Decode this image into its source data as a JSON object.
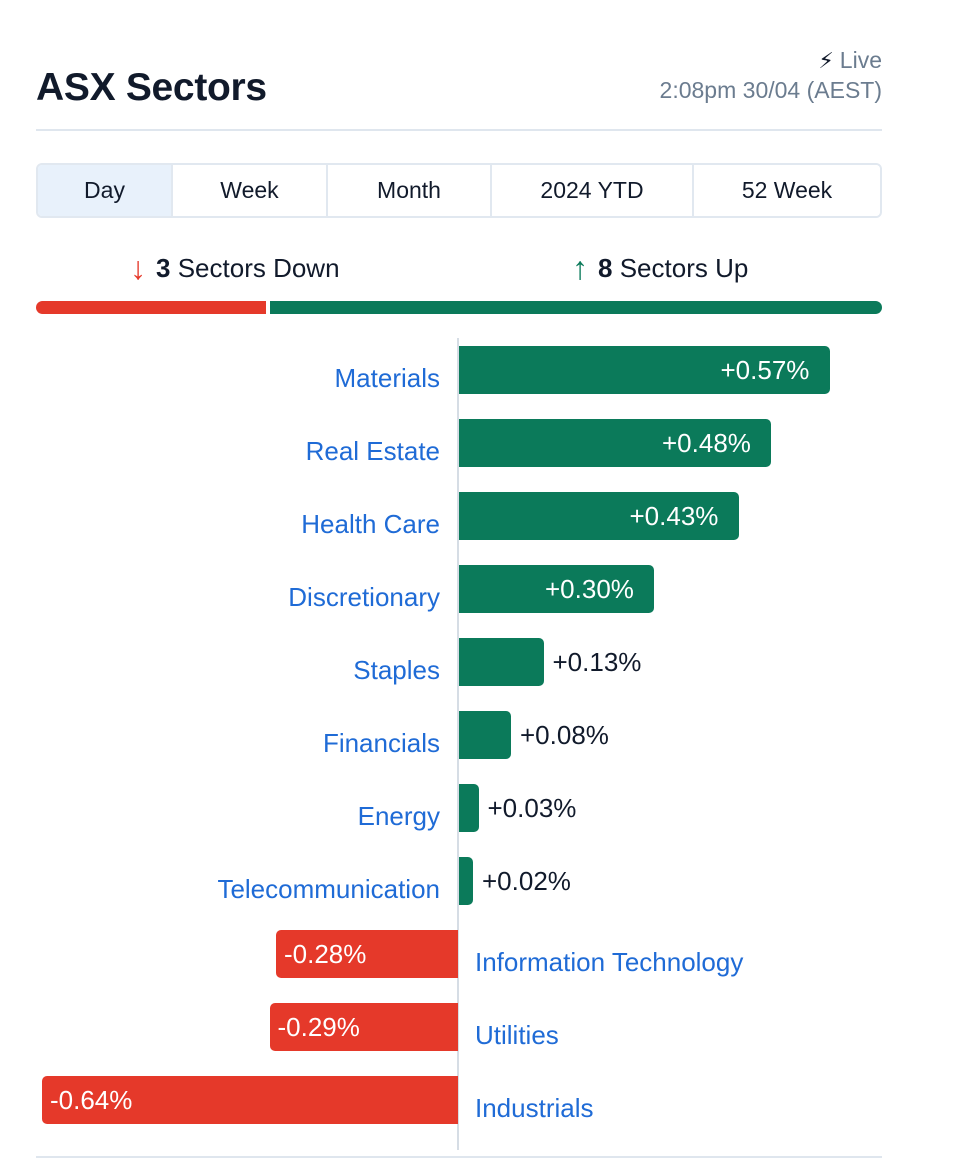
{
  "header": {
    "title": "ASX Sectors",
    "live_label": "Live",
    "live_icon": "lightning-icon",
    "timestamp": "2:08pm 30/04 (AEST)"
  },
  "tabs": [
    {
      "label": "Day",
      "active": true
    },
    {
      "label": "Week",
      "active": false
    },
    {
      "label": "Month",
      "active": false
    },
    {
      "label": "2024 YTD",
      "active": false
    },
    {
      "label": "52 Week",
      "active": false
    }
  ],
  "summary": {
    "down_count": "3",
    "down_text": "Sectors Down",
    "up_count": "8",
    "up_text": "Sectors Up"
  },
  "colors": {
    "up": "#0b7a5a",
    "down": "#e5392a",
    "link": "#1f6bd6"
  },
  "chart_data": {
    "type": "bar",
    "orientation": "horizontal",
    "title": "",
    "categories": [
      "Materials",
      "Real Estate",
      "Health Care",
      "Discretionary",
      "Staples",
      "Financials",
      "Energy",
      "Telecommunication",
      "Information Technology",
      "Utilities",
      "Industrials"
    ],
    "values": [
      0.57,
      0.48,
      0.43,
      0.3,
      0.13,
      0.08,
      0.03,
      0.02,
      -0.28,
      -0.29,
      -0.64
    ],
    "labels": [
      "+0.57%",
      "+0.48%",
      "+0.43%",
      "+0.30%",
      "+0.13%",
      "+0.08%",
      "+0.03%",
      "+0.02%",
      "-0.28%",
      "-0.29%",
      "-0.64%"
    ],
    "unit": "%",
    "xlim": [
      -0.64,
      0.57
    ]
  }
}
